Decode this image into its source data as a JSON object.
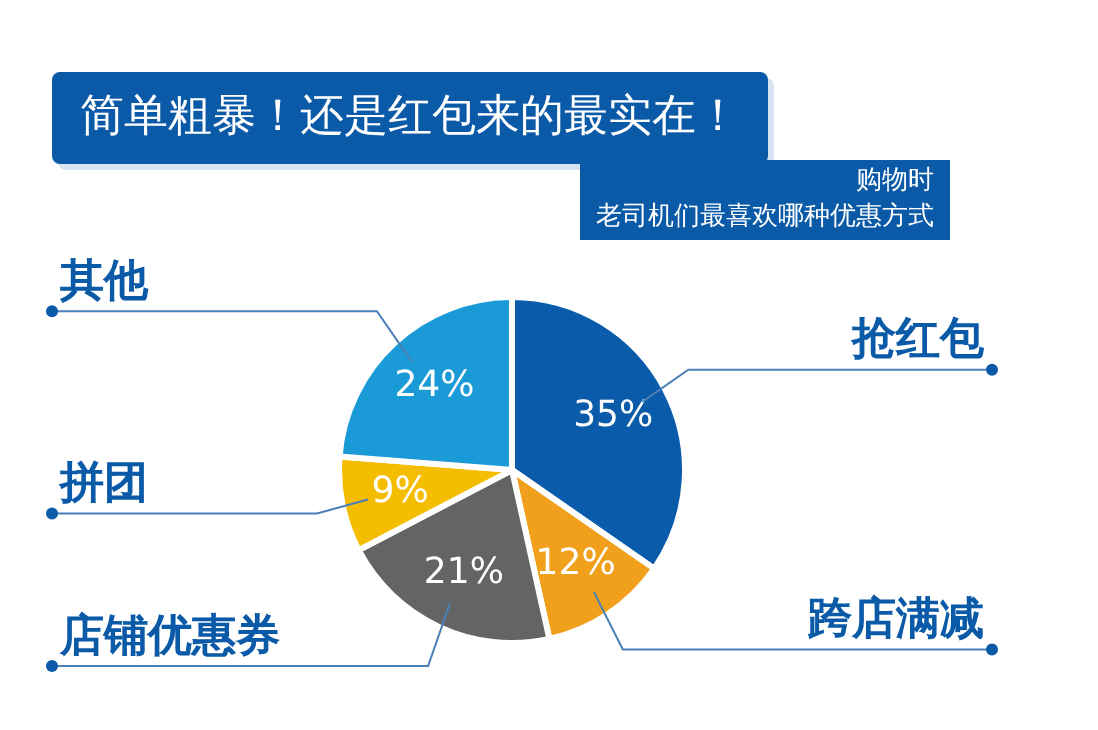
{
  "chart_data": {
    "type": "pie",
    "title": "简单粗暴！还是红包来的最实在！",
    "subtitle": "购物时",
    "annotations": [
      "老司机们最喜欢哪种优惠方式"
    ],
    "categories": [
      "抢红包",
      "跨店满减",
      "店铺优惠券",
      "拼团",
      "其他"
    ],
    "values": [
      35,
      12,
      21,
      9,
      24
    ],
    "colors": [
      "#0a5cab",
      "#f0a01a",
      "#636466",
      "#f5bd00",
      "#1a9ad6"
    ],
    "value_labels": [
      "35%",
      "12%",
      "21%",
      "9%",
      "24%"
    ],
    "legend": false
  }
}
